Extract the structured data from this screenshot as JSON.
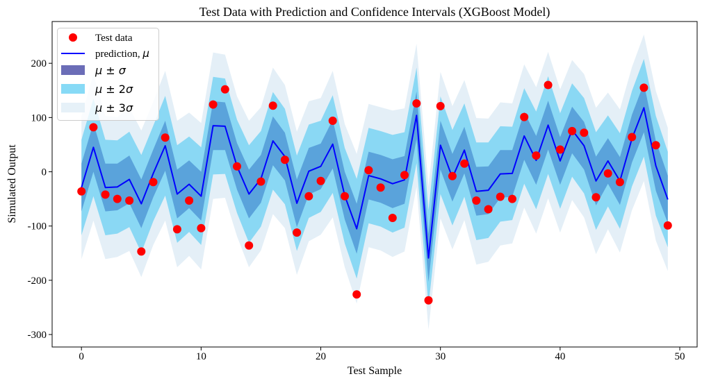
{
  "chart_data": {
    "type": "line",
    "title": "Test Data with Prediction and Confidence Intervals (XGBoost Model)",
    "xlabel": "Test Sample",
    "ylabel": "Simulated Output",
    "xlim": [
      -2.45,
      51.45
    ],
    "ylim": [
      -323,
      277
    ],
    "xticks": [
      0,
      10,
      20,
      30,
      40,
      50
    ],
    "xtick_labels": [
      "0",
      "10",
      "20",
      "30",
      "40",
      "50"
    ],
    "yticks": [
      200,
      100,
      0,
      -100,
      -200,
      -300
    ],
    "ytick_labels": [
      "200",
      "100",
      "0",
      "-100",
      "-200",
      "-300"
    ],
    "grid": false,
    "legend_position": "top-left",
    "x": [
      0,
      1,
      2,
      3,
      4,
      5,
      6,
      7,
      8,
      9,
      10,
      11,
      12,
      13,
      14,
      15,
      16,
      17,
      18,
      19,
      20,
      21,
      22,
      23,
      24,
      25,
      26,
      27,
      28,
      29,
      30,
      31,
      32,
      33,
      34,
      35,
      36,
      37,
      38,
      39,
      40,
      41,
      42,
      43,
      44,
      45,
      46,
      47,
      48,
      49
    ],
    "series": [
      {
        "name": "Test data",
        "kind": "scatter",
        "color": "#ff0000",
        "values": [
          -36,
          82,
          -42,
          -50,
          -53,
          -147,
          -19,
          63,
          -106,
          -53,
          -104,
          124,
          152,
          10,
          -136,
          -18,
          122,
          22,
          -112,
          -45,
          -17,
          94,
          -45,
          -226,
          3,
          -29,
          -85,
          -6,
          126,
          -237,
          121,
          -8,
          15,
          -53,
          -69,
          -46,
          -50,
          101,
          30,
          160,
          41,
          75,
          72,
          -47,
          -3,
          -19,
          64,
          155,
          49,
          -99
        ]
      },
      {
        "name": "prediction, μ",
        "kind": "line",
        "color": "#0000ff",
        "values": [
          -29,
          45,
          -29,
          -28,
          -14,
          -59,
          -3,
          48,
          -41,
          -23,
          -45,
          85,
          84,
          10,
          -41,
          -13,
          57,
          28,
          -58,
          1,
          10,
          51,
          -44,
          -105,
          -7,
          -13,
          -22,
          -15,
          104,
          -159,
          49,
          -11,
          40,
          -36,
          -34,
          -4,
          -3,
          66,
          21,
          86,
          20,
          77,
          48,
          -17,
          20,
          -17,
          61,
          118,
          11,
          -51
        ]
      }
    ],
    "sigma": [
      44,
      45,
      44,
      43,
      44,
      45,
      44,
      46,
      45,
      44,
      45,
      45,
      44,
      43,
      45,
      44,
      45,
      44,
      44,
      43,
      42,
      45,
      44,
      46,
      44,
      44,
      45,
      44,
      44,
      44,
      45,
      44,
      43,
      45,
      44,
      44,
      43,
      44,
      45,
      45,
      44,
      43,
      44,
      45,
      42,
      44,
      44,
      45,
      46,
      44
    ],
    "bands": [
      {
        "name": "μ ± σ",
        "multiplier": 1,
        "color": "#5aa3db",
        "legend_color": "#6b6db7"
      },
      {
        "name": "μ ± 2σ",
        "multiplier": 2,
        "color": "#8ad8f4",
        "legend_color": "#87daf6"
      },
      {
        "name": "μ ± 3σ",
        "multiplier": 3,
        "color": "#e4eff7",
        "legend_color": "#e6f1f8"
      }
    ]
  }
}
